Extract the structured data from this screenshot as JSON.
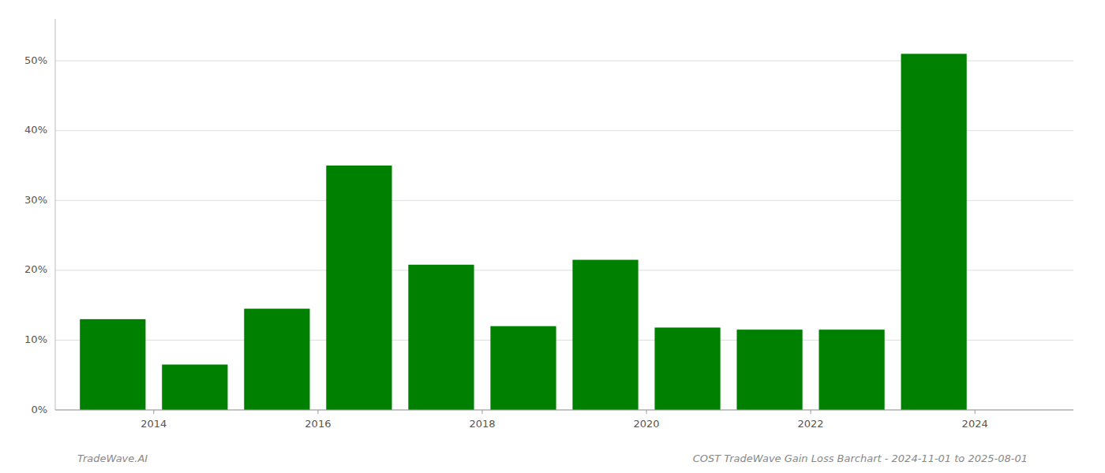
{
  "chart_data": {
    "type": "bar",
    "x": [
      2013.5,
      2014.5,
      2015.5,
      2016.5,
      2017.5,
      2018.5,
      2019.5,
      2020.5,
      2021.5,
      2022.5,
      2023.5
    ],
    "values": [
      0.13,
      0.065,
      0.145,
      0.35,
      0.208,
      0.12,
      0.215,
      0.118,
      0.115,
      0.115,
      0.51
    ],
    "color": "#008000",
    "xlim": [
      2012.8,
      2025.2
    ],
    "xticks": [
      2014,
      2016,
      2018,
      2020,
      2022,
      2024
    ],
    "ylim": [
      0.0,
      0.56
    ],
    "yticks": [
      {
        "value": 0.0,
        "label": "0%"
      },
      {
        "value": 0.1,
        "label": "10%"
      },
      {
        "value": 0.2,
        "label": "20%"
      },
      {
        "value": 0.3,
        "label": "30%"
      },
      {
        "value": 0.4,
        "label": "40%"
      },
      {
        "value": 0.5,
        "label": "50%"
      }
    ],
    "grid": true,
    "annotations": [
      "TradeWave.AI",
      "COST TradeWave Gain Loss Barchart - 2024-11-01 to 2025-08-01"
    ]
  }
}
